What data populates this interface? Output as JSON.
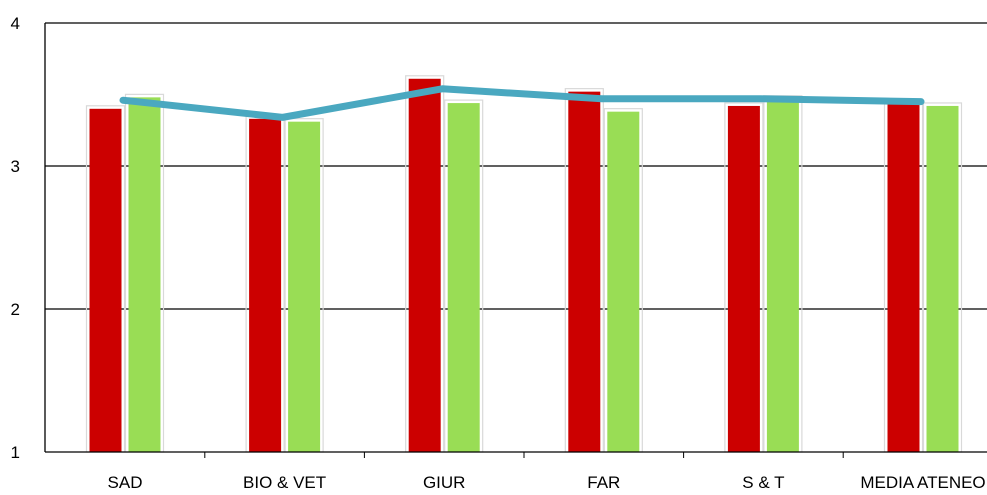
{
  "chart_data": {
    "type": "bar",
    "categories": [
      "SAD",
      "BIO & VET",
      "GIUR",
      "FAR",
      "S & T",
      "MEDIA ATENEO"
    ],
    "series": [
      {
        "values": [
          3.4,
          3.33,
          3.61,
          3.52,
          3.42,
          3.44
        ],
        "color": "#cc0000",
        "kind": "bar"
      },
      {
        "values": [
          3.48,
          3.31,
          3.44,
          3.38,
          3.47,
          3.42
        ],
        "color": "#99dd55",
        "kind": "bar"
      },
      {
        "values": [
          3.46,
          3.34,
          3.54,
          3.47,
          3.47,
          3.45
        ],
        "color": "#4aa8c0",
        "kind": "line"
      }
    ],
    "ylim": [
      1,
      4
    ],
    "yticks": [
      "1",
      "2",
      "3",
      "4"
    ],
    "title": "",
    "xlabel": "",
    "ylabel": "",
    "grid": true,
    "legend": false
  }
}
